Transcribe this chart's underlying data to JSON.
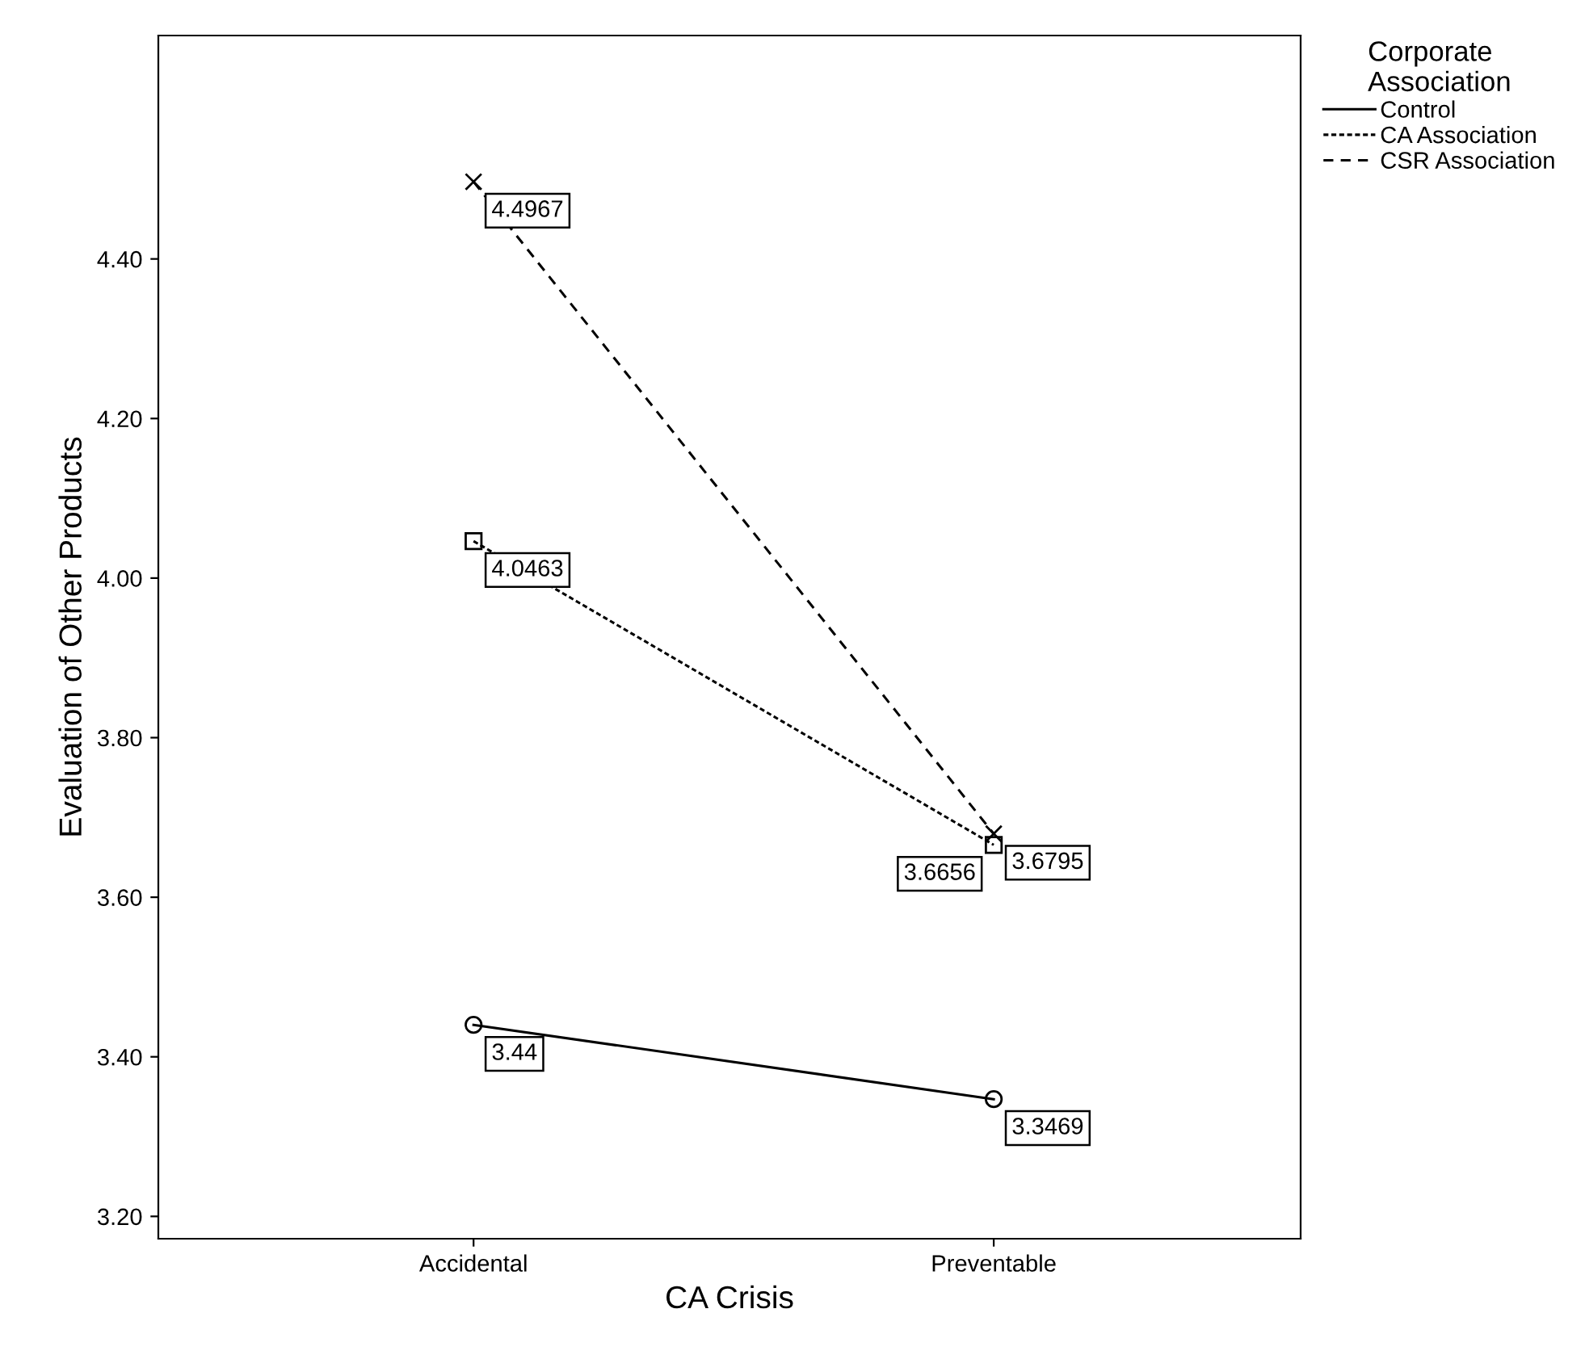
{
  "chart_data": {
    "type": "line",
    "xlabel": "CA Crisis",
    "ylabel": "Evaluation of Other Products",
    "legend_title": "Corporate Association",
    "categories": [
      "Accidental",
      "Preventable"
    ],
    "series": [
      {
        "name": "Control",
        "color": "#000000",
        "values": [
          3.44,
          3.3469
        ],
        "marker": "circle",
        "line_style": "solid"
      },
      {
        "name": "CA Association",
        "color": "#000000",
        "values": [
          4.0463,
          3.6656
        ],
        "marker": "square",
        "line_style": "dotted"
      },
      {
        "name": "CSR Association",
        "color": "#000000",
        "values": [
          4.4967,
          3.6795
        ],
        "marker": "cross",
        "line_style": "dashed"
      }
    ],
    "ylim": [
      3.172,
      4.68
    ],
    "yticks": [
      {
        "value": 3.2,
        "label": "3.20"
      },
      {
        "value": 3.4,
        "label": "3.40"
      },
      {
        "value": 3.6,
        "label": "3.60"
      },
      {
        "value": 3.8,
        "label": "3.80"
      },
      {
        "value": 4.0,
        "label": "4.00"
      },
      {
        "value": 4.2,
        "label": "4.20"
      },
      {
        "value": 4.4,
        "label": "4.40"
      }
    ],
    "data_labels": true,
    "legend": "top right",
    "grid": false
  }
}
